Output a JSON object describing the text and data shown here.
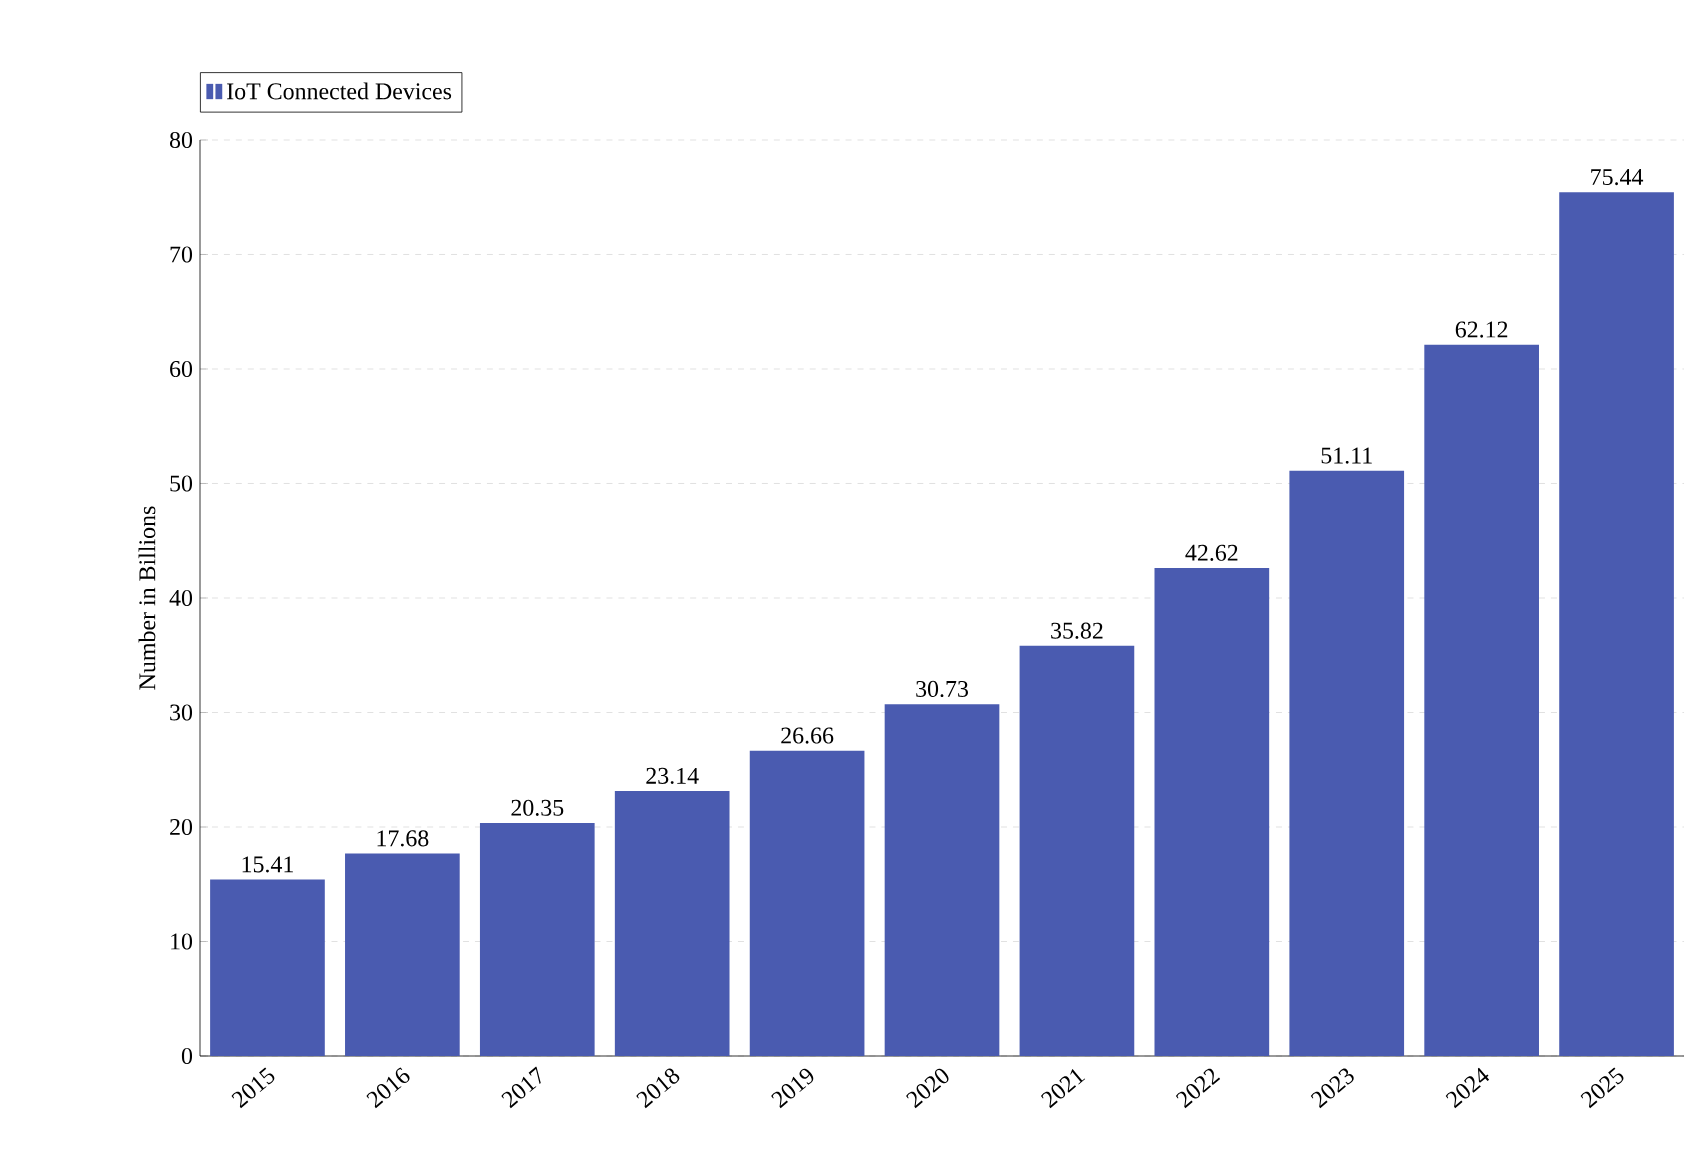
{
  "chart_data": {
    "type": "bar",
    "ylabel": "Number in Billions",
    "categories": [
      "2015",
      "2016",
      "2017",
      "2018",
      "2019",
      "2020",
      "2021",
      "2022",
      "2023",
      "2024",
      "2025"
    ],
    "series": [
      {
        "name": "IoT Connected Devices",
        "color": "#4a5bb0",
        "values": [
          15.41,
          17.68,
          20.35,
          23.14,
          26.66,
          30.73,
          35.82,
          42.62,
          51.11,
          62.12,
          75.44
        ]
      }
    ],
    "ylim": [
      0,
      80
    ],
    "yticks": [
      0,
      10,
      20,
      30,
      40,
      50,
      60,
      70,
      80
    ],
    "grid": "y",
    "legend": "top left",
    "data_labels": true
  }
}
